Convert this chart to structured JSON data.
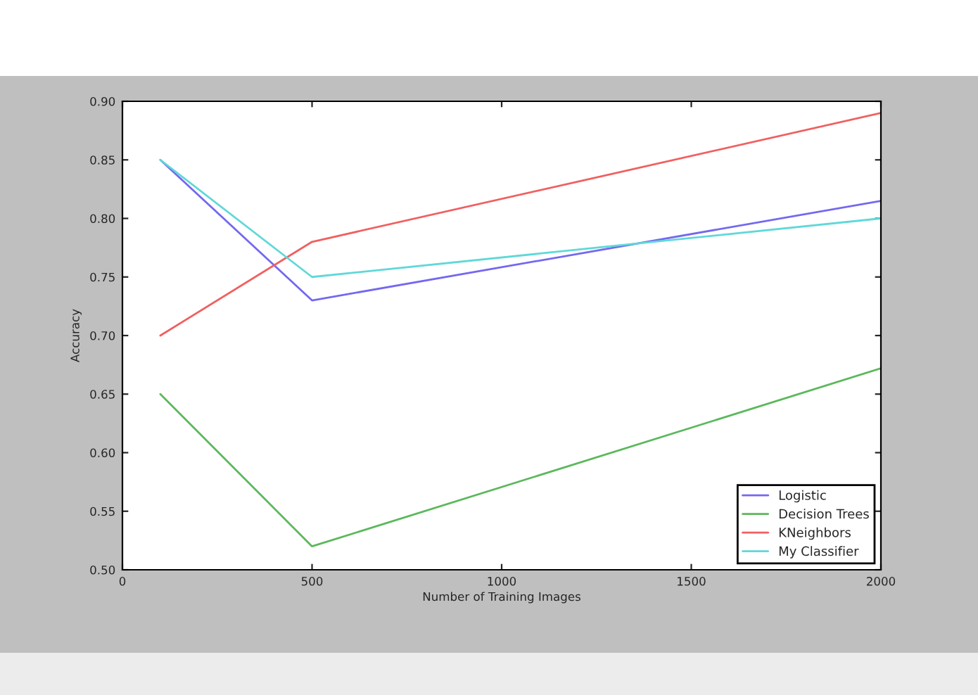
{
  "chart_data": {
    "type": "line",
    "xlabel": "Number of Training Images",
    "ylabel": "Accuracy",
    "x": [
      100,
      500,
      2000
    ],
    "series": [
      {
        "name": "Logistic",
        "color": "#7468f0",
        "values": [
          0.85,
          0.73,
          0.815
        ]
      },
      {
        "name": "Decision Trees",
        "color": "#5cb85c",
        "values": [
          0.65,
          0.52,
          0.672
        ]
      },
      {
        "name": "KNeighbors",
        "color": "#f06060",
        "values": [
          0.7,
          0.78,
          0.89
        ]
      },
      {
        "name": "My Classifier",
        "color": "#60d8d8",
        "values": [
          0.85,
          0.75,
          0.8
        ]
      }
    ],
    "xlim": [
      0,
      2000
    ],
    "xticks": [
      0,
      500,
      1000,
      1500,
      2000
    ],
    "ylim": [
      0.5,
      0.9
    ],
    "yticks": [
      {
        "value": 0.5,
        "label": "0.50"
      },
      {
        "value": 0.55,
        "label": "0.55"
      },
      {
        "value": 0.6,
        "label": "0.60"
      },
      {
        "value": 0.65,
        "label": "0.65"
      },
      {
        "value": 0.7,
        "label": "0.70"
      },
      {
        "value": 0.75,
        "label": "0.75"
      },
      {
        "value": 0.8,
        "label": "0.80"
      },
      {
        "value": 0.85,
        "label": "0.85"
      },
      {
        "value": 0.9,
        "label": "0.90"
      }
    ],
    "grid": false,
    "legend": "bottom right",
    "marker": "none",
    "line_style": "solid"
  }
}
